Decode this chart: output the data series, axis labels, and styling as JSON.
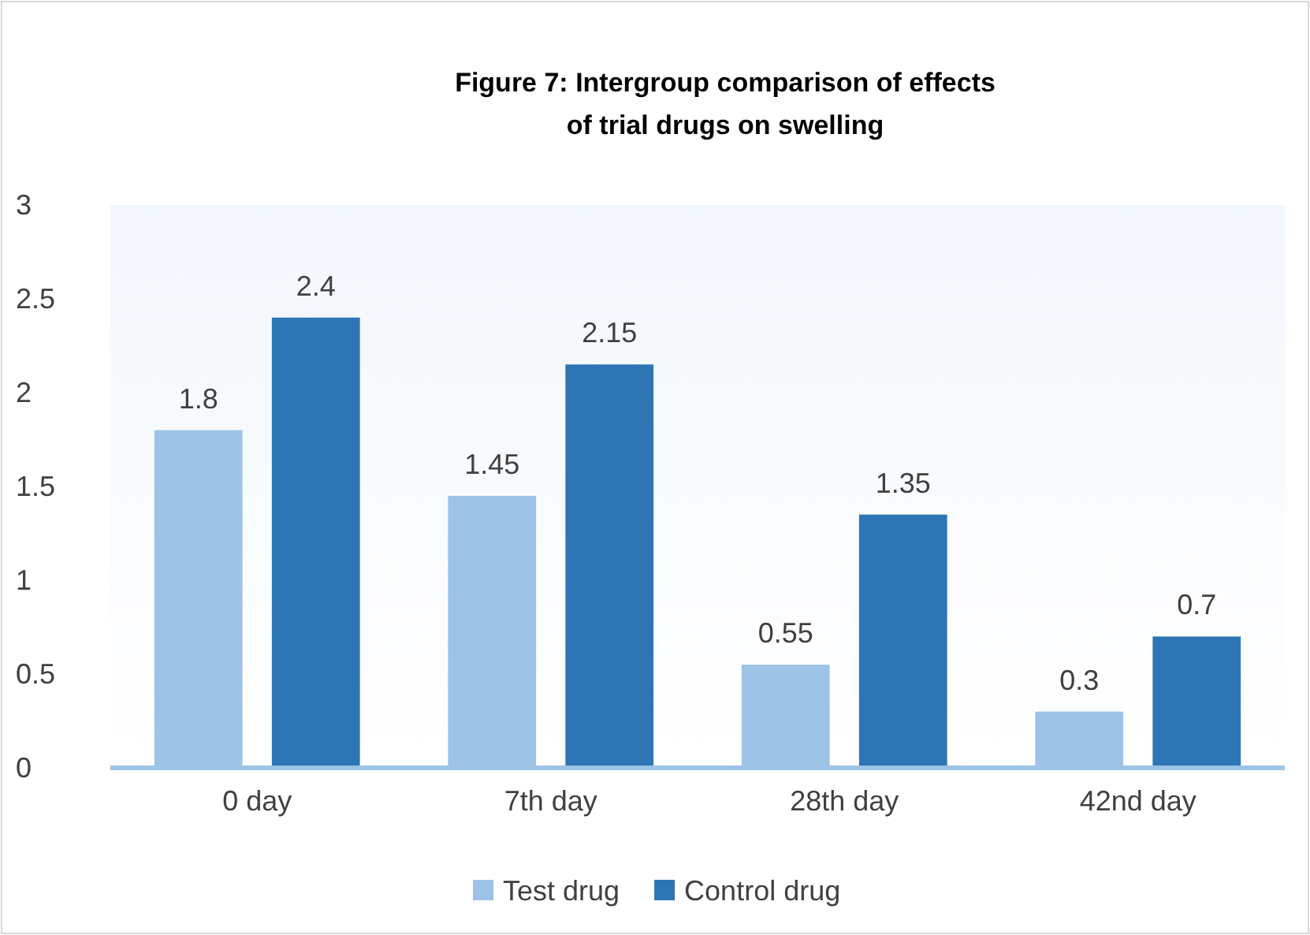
{
  "chart_data": {
    "type": "bar",
    "title": "Figure 7: Intergroup comparison of  effects\nof trial drugs on swelling",
    "categories": [
      "0 day",
      "7th day",
      "28th day",
      "42nd day"
    ],
    "series": [
      {
        "name": "Test drug",
        "color": "#9dc3e6",
        "values": [
          1.8,
          1.45,
          0.55,
          0.3
        ]
      },
      {
        "name": "Control drug",
        "color": "#2e75b6",
        "values": [
          2.4,
          2.15,
          1.35,
          0.7
        ]
      }
    ],
    "ylim": [
      0,
      3
    ],
    "yticks": [
      0,
      0.5,
      1,
      1.5,
      2,
      2.5,
      3
    ],
    "data_labels": true,
    "grid": false,
    "legend": "bottom"
  }
}
